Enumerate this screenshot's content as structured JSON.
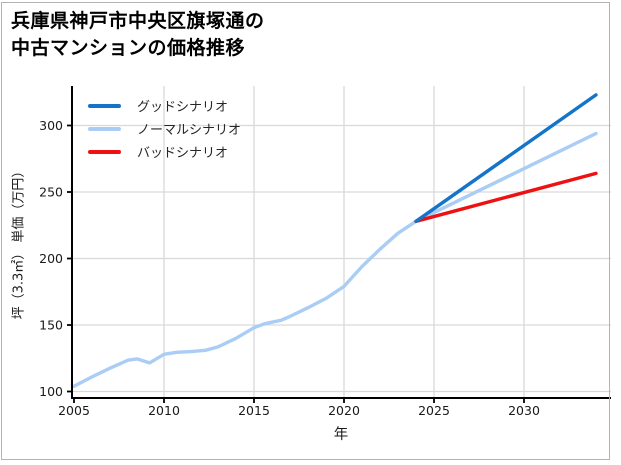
{
  "title": {
    "line1": "兵庫県神戸市中央区旗塚通の",
    "line2": "中古マンションの価格推移"
  },
  "legend": [
    {
      "label": "グッドシナリオ",
      "color": "#1474c9"
    },
    {
      "label": "ノーマルシナリオ",
      "color": "#aacdf5"
    },
    {
      "label": "バッドシナリオ",
      "color": "#ee1111"
    }
  ],
  "axes": {
    "x_label": "年",
    "y_label": "坪（3.3㎡） 単価（万円）",
    "x_ticks": [
      2005,
      2010,
      2015,
      2020,
      2025,
      2030
    ],
    "y_ticks": [
      100,
      150,
      200,
      250,
      300
    ]
  },
  "style": {
    "grid_color": "#d9d9d9",
    "spine_color": "#000000",
    "tick_label_color": "#1a1a1a",
    "border_color": "#b3b3b3",
    "background": "#ffffff"
  },
  "chart_data": {
    "type": "line",
    "title": "兵庫県神戸市中央区旗塚通の中古マンションの価格推移",
    "xlabel": "年",
    "ylabel": "坪（3.3㎡） 単価（万円）",
    "xlim": [
      2005,
      2034.8
    ],
    "ylim": [
      95,
      328
    ],
    "grid": true,
    "legend_position": "upper-left",
    "forecast_branch_year": 2024,
    "series": [
      {
        "id": "normal-scenario",
        "name": "ノーマルシナリオ",
        "color": "#aacdf5",
        "x": [
          2005,
          2006,
          2007,
          2008,
          2008.5,
          2009.2,
          2010,
          2010.7,
          2011.5,
          2012.3,
          2013,
          2014,
          2015,
          2015.6,
          2016.5,
          2017,
          2018,
          2019,
          2020,
          2021,
          2022,
          2023,
          2024,
          2034
        ],
        "values": [
          104,
          111,
          117.5,
          123.5,
          124.5,
          121.5,
          128,
          129.5,
          130,
          131,
          133.5,
          140,
          148,
          151,
          153.5,
          156.5,
          163,
          170,
          179,
          194,
          207,
          219,
          228,
          294
        ]
      },
      {
        "id": "bad-scenario",
        "name": "バッドシナリオ",
        "color": "#ee1111",
        "x": [
          2024,
          2034
        ],
        "values": [
          228,
          264
        ]
      },
      {
        "id": "good-scenario",
        "name": "グッドシナリオ",
        "color": "#1474c9",
        "x": [
          2024,
          2034
        ],
        "values": [
          228,
          323
        ]
      }
    ]
  }
}
